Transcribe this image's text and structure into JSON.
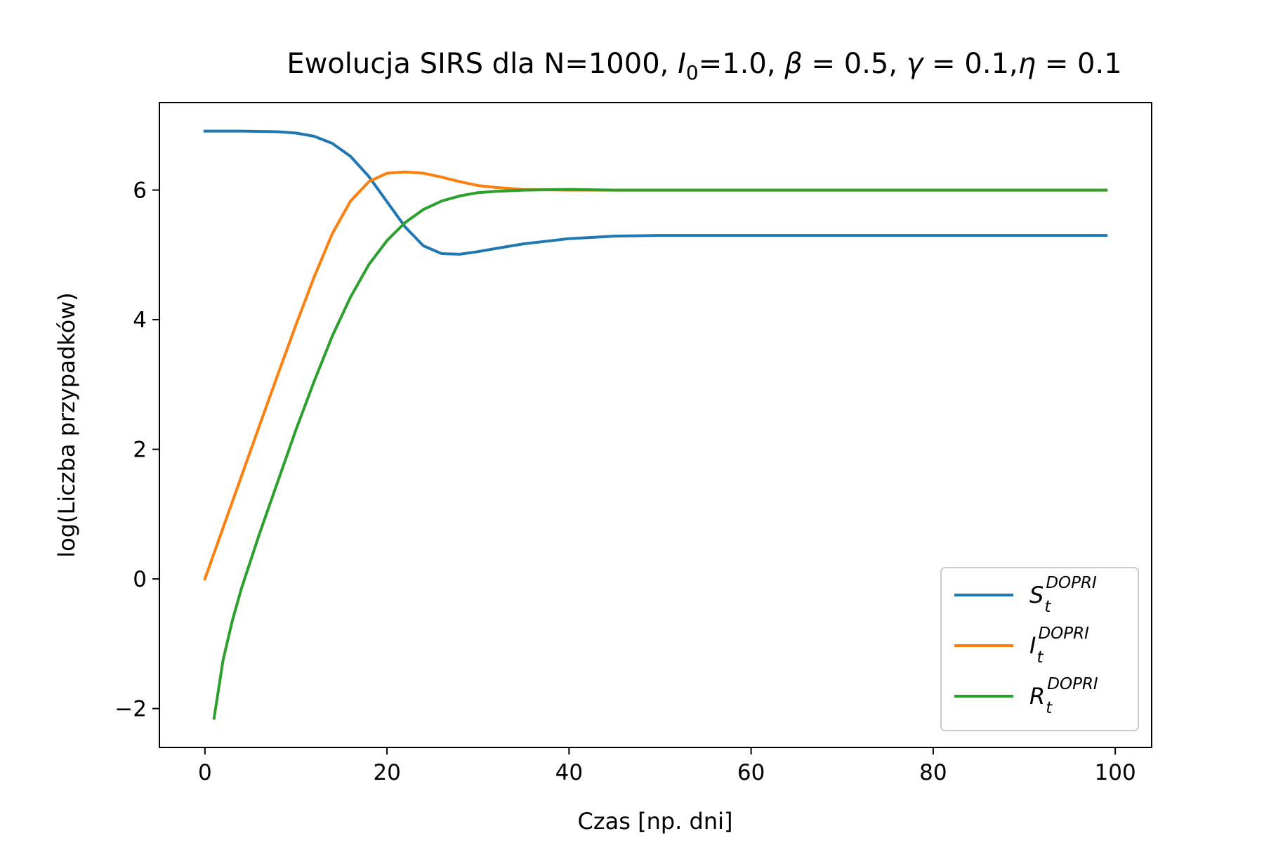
{
  "chart_data": {
    "type": "line",
    "title": {
      "prefix": "Ewolucja SIRS dla N=1000, ",
      "i0_symbol": "I",
      "i0_sub": "0",
      "i0_value": "=1.0, ",
      "beta_symbol": "β",
      "beta_value": " = 0.5, ",
      "gamma_symbol": "γ",
      "gamma_value": " = 0.1,",
      "eta_symbol": "η",
      "eta_value": " = 0.1"
    },
    "xlabel": "Czas [np. dni]",
    "ylabel": "log(Liczba przypadków)",
    "xlim": [
      -5,
      104
    ],
    "ylim": [
      -2.6,
      7.35
    ],
    "xticks": [
      0,
      20,
      40,
      60,
      80,
      100
    ],
    "yticks": [
      -2,
      0,
      2,
      4,
      6
    ],
    "xtick_labels": [
      "0",
      "20",
      "40",
      "60",
      "80",
      "100"
    ],
    "ytick_labels": [
      "−2",
      "0",
      "2",
      "4",
      "6"
    ],
    "legend_position": "lower right",
    "series": [
      {
        "name": "S",
        "sub": "t",
        "sup": "DOPRI",
        "color": "#1f77b4",
        "x": [
          0,
          4,
          8,
          10,
          12,
          14,
          16,
          18,
          20,
          22,
          24,
          26,
          28,
          30,
          32,
          35,
          40,
          45,
          50,
          55,
          60,
          70,
          80,
          90,
          99
        ],
        "y": [
          6.91,
          6.91,
          6.9,
          6.88,
          6.83,
          6.72,
          6.52,
          6.21,
          5.82,
          5.43,
          5.14,
          5.02,
          5.01,
          5.05,
          5.1,
          5.17,
          5.25,
          5.29,
          5.3,
          5.3,
          5.3,
          5.3,
          5.3,
          5.3,
          5.3
        ]
      },
      {
        "name": "I",
        "sub": "t",
        "sup": "DOPRI",
        "color": "#ff7f0e",
        "x": [
          0,
          2,
          4,
          6,
          8,
          10,
          12,
          14,
          16,
          18,
          20,
          22,
          24,
          26,
          28,
          30,
          32,
          35,
          40,
          45,
          50,
          60,
          70,
          80,
          90,
          99
        ],
        "y": [
          0.0,
          0.79,
          1.58,
          2.37,
          3.15,
          3.92,
          4.66,
          5.33,
          5.83,
          6.13,
          6.26,
          6.28,
          6.26,
          6.2,
          6.13,
          6.07,
          6.04,
          6.01,
          6.0,
          6.0,
          6.0,
          6.0,
          6.0,
          6.0,
          6.0,
          6.0
        ]
      },
      {
        "name": "R",
        "sub": "t",
        "sup": "DOPRI",
        "color": "#2ca02c",
        "x": [
          1,
          2,
          3,
          4,
          6,
          8,
          10,
          12,
          14,
          16,
          18,
          20,
          22,
          24,
          26,
          28,
          30,
          32,
          35,
          40,
          45,
          50,
          60,
          70,
          80,
          90,
          99
        ],
        "y": [
          -2.15,
          -1.25,
          -0.65,
          -0.15,
          0.7,
          1.5,
          2.3,
          3.05,
          3.75,
          4.35,
          4.85,
          5.22,
          5.5,
          5.7,
          5.83,
          5.91,
          5.96,
          5.98,
          6.0,
          6.01,
          6.0,
          6.0,
          6.0,
          6.0,
          6.0,
          6.0,
          6.0
        ]
      }
    ]
  }
}
